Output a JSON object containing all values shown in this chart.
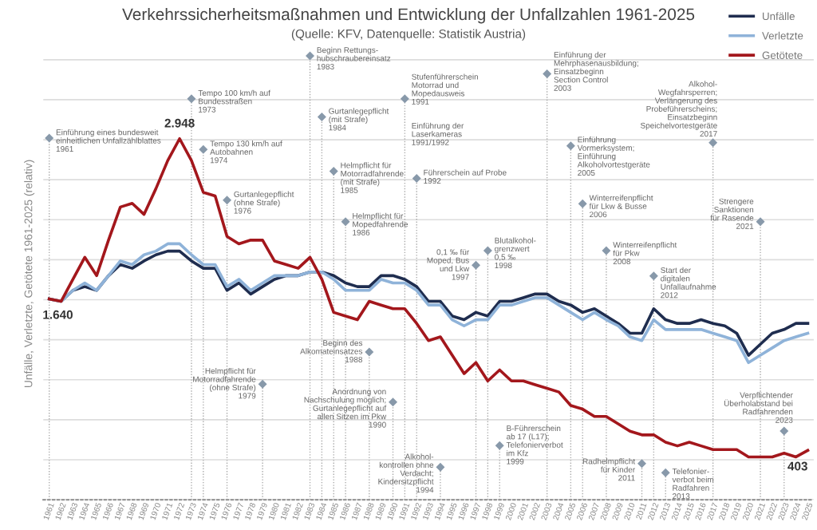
{
  "chart_data": {
    "type": "line",
    "title": "Verkehrssicherheitsmaßnahmen und Entwicklung der Unfallzahlen 1961-2025",
    "subtitle": "(Quelle: KFV, Datenquelle: Statistik Austria)",
    "ylabel": "Unfälle, Verletzte, Getötete 1961-2025 (relativ)",
    "grid": "y",
    "legend": "top right",
    "tick_labels": "x",
    "marker": "none",
    "line_style": "solid",
    "categories": [
      "1961",
      "1962",
      "1963",
      "1964",
      "1965",
      "1966",
      "1967",
      "1968",
      "1969",
      "1970",
      "1971",
      "1972",
      "1973",
      "1974",
      "1975",
      "1976",
      "1977",
      "1978",
      "1979",
      "1980",
      "1981",
      "1982",
      "1983",
      "1984",
      "1985",
      "1986",
      "1987",
      "1988",
      "1989",
      "1990",
      "1991",
      "1992",
      "1993",
      "1994",
      "1995",
      "1996",
      "1997",
      "1998",
      "1999",
      "2000",
      "2001",
      "2002",
      "2003",
      "2004",
      "2005",
      "2006",
      "2007",
      "2008",
      "2009",
      "2010",
      "2011",
      "2012",
      "2013",
      "2014",
      "2015",
      "2016",
      "2017",
      "2018",
      "2019",
      "2020",
      "2021",
      "2022",
      "2023",
      "2024",
      "2025"
    ],
    "series": [
      {
        "name": "Unfälle",
        "color": "#1f2d4f",
        "values": [
          1640,
          1620,
          1710,
          1740,
          1710,
          1830,
          1920,
          1890,
          1950,
          2000,
          2030,
          2030,
          1950,
          1890,
          1890,
          1710,
          1770,
          1680,
          1740,
          1800,
          1830,
          1830,
          1860,
          1860,
          1830,
          1770,
          1740,
          1740,
          1830,
          1830,
          1800,
          1740,
          1620,
          1620,
          1500,
          1470,
          1530,
          1500,
          1620,
          1620,
          1650,
          1680,
          1680,
          1620,
          1590,
          1530,
          1560,
          1500,
          1440,
          1360,
          1360,
          1560,
          1470,
          1440,
          1440,
          1470,
          1440,
          1420,
          1360,
          1180,
          1270,
          1360,
          1390,
          1440,
          1440
        ]
      },
      {
        "name": "Verletzte",
        "color": "#8fb3d9",
        "values": [
          1640,
          1620,
          1710,
          1770,
          1710,
          1830,
          1950,
          1920,
          2000,
          2030,
          2090,
          2090,
          2000,
          1920,
          1920,
          1740,
          1800,
          1710,
          1770,
          1830,
          1830,
          1830,
          1860,
          1860,
          1800,
          1710,
          1710,
          1710,
          1800,
          1770,
          1770,
          1710,
          1590,
          1590,
          1470,
          1420,
          1470,
          1470,
          1590,
          1590,
          1620,
          1650,
          1650,
          1590,
          1530,
          1470,
          1530,
          1470,
          1420,
          1330,
          1300,
          1470,
          1390,
          1390,
          1390,
          1390,
          1360,
          1330,
          1300,
          1120,
          1180,
          1240,
          1300,
          1330,
          1360
        ]
      },
      {
        "name": "Getötete",
        "color": "#a3171c",
        "values": [
          1640,
          1620,
          1800,
          1980,
          1830,
          2120,
          2390,
          2420,
          2330,
          2540,
          2770,
          2948,
          2770,
          2510,
          2480,
          2150,
          2090,
          2120,
          2120,
          1950,
          1920,
          1890,
          1980,
          1800,
          1530,
          1500,
          1470,
          1620,
          1590,
          1560,
          1560,
          1440,
          1300,
          1330,
          1180,
          1030,
          1120,
          970,
          1060,
          970,
          970,
          940,
          910,
          880,
          770,
          740,
          680,
          680,
          620,
          560,
          530,
          530,
          470,
          440,
          470,
          440,
          410,
          410,
          410,
          350,
          350,
          350,
          380,
          350,
          403
        ],
        "value_labels": [
          "1.640",
          null,
          null,
          null,
          null,
          null,
          null,
          null,
          null,
          null,
          null,
          "2.948",
          null,
          null,
          null,
          null,
          null,
          null,
          null,
          null,
          null,
          null,
          null,
          null,
          null,
          null,
          null,
          null,
          null,
          null,
          null,
          null,
          null,
          null,
          null,
          null,
          null,
          null,
          null,
          null,
          null,
          null,
          null,
          null,
          null,
          null,
          null,
          null,
          null,
          null,
          null,
          null,
          null,
          null,
          null,
          null,
          null,
          null,
          null,
          null,
          null,
          null,
          null,
          null,
          "403"
        ]
      }
    ],
    "annotations": [
      "Einführung der\nLaserkameras\n1991/1992"
    ],
    "ref_lines": [
      {
        "axis": "x",
        "value": "1961",
        "label": "Einführung eines bundesweit\neinheitlichen Unfallzählblattes\n1961"
      },
      {
        "axis": "x",
        "value": "1973",
        "label": "Tempo 100 km/h auf\nBundesstraßen\n1973"
      },
      {
        "axis": "x",
        "value": "1974",
        "label": "Tempo 130 km/h auf\nAutobahnen\n1974"
      },
      {
        "axis": "x",
        "value": "1976",
        "label": "Gurtanlegepflicht\n(ohne Strafe)\n1976"
      },
      {
        "axis": "x",
        "value": "1983",
        "label": "Beginn Rettungs-\nhubschraubereinsatz\n1983"
      },
      {
        "axis": "x",
        "value": "1984",
        "label": "Gurtanlegepflicht\n(mit Strafe)\n1984"
      },
      {
        "axis": "x",
        "value": "1985",
        "label": "Helmpflicht für\nMotorradfahrende\n(mit Strafe)\n1985"
      },
      {
        "axis": "x",
        "value": "1986",
        "label": "Helmpflicht für\nMopedfahrende\n1986"
      },
      {
        "axis": "x",
        "value": "1991",
        "label": "Stufenführerschein\nMotorrad und\nMopedausweis\n1991"
      },
      {
        "axis": "x",
        "value": "1992",
        "label": "Führerschein auf Probe\n1992"
      },
      {
        "axis": "x",
        "value": "1997",
        "label": "0,1 ‰ für\nMoped, Bus\nund Lkw\n1997"
      },
      {
        "axis": "x",
        "value": "1998",
        "label": "Blutalkohol-\ngrenzwert\n0,5 ‰\n1998"
      },
      {
        "axis": "x",
        "value": "2003",
        "label": "Einführung der\nMehrphasenausbildung;\nEinsatzbeginn\nSection Control\n2003"
      },
      {
        "axis": "x",
        "value": "2005",
        "label": "Einführung\nVormerksystem;\nEinführung\nAlkoholvortestgeräte\n2005"
      },
      {
        "axis": "x",
        "value": "2006",
        "label": "Winterreifenpflicht\nfür Lkw & Busse\n2006"
      },
      {
        "axis": "x",
        "value": "2008",
        "label": "Winterreifenpflicht\nfür Pkw\n2008"
      },
      {
        "axis": "x",
        "value": "2012",
        "label": "Start der\ndigitalen\nUnfallaufnahme\n2012"
      },
      {
        "axis": "x",
        "value": "2017",
        "label": "Alkohol-\nWegfahrsperren;\nVerlängerung des\nProbeführerscheins;\nEinsatzbeginn\nSpeichelvortestgeräte\n2017"
      },
      {
        "axis": "x",
        "value": "2021",
        "label": "Strengere\nSanktionen\nfür Rasende\n2021"
      },
      {
        "axis": "x",
        "value": "2023",
        "label": "Verpflichtender\nÜberholabstand bei\nRadfahrenden\n2023"
      },
      {
        "axis": "x",
        "value": "2013",
        "label": "Telefonier-\nverbot beim\nRadfahren\n2013"
      },
      {
        "axis": "x",
        "value": "2011",
        "label": "Radhelmpflicht\nfür Kinder\n2011"
      },
      {
        "axis": "x",
        "value": "1999",
        "label": "B-Führerschein\nab 17 (L17);\nTelefonierverbot\nim Kfz\n1999"
      },
      {
        "axis": "x",
        "value": "1994",
        "label": "Alkohol-\nkontrollen ohne\nVerdacht;\nKindersitzpflicht\n1994"
      },
      {
        "axis": "x",
        "value": "1990",
        "label": "Anordnung von\nNachschulung möglich;\nGurtanlegepflicht auf\nallen Sitzen im Pkw\n1990"
      },
      {
        "axis": "x",
        "value": "1988",
        "label": "Beginn des\nAlkomateinsatzes\n1988"
      },
      {
        "axis": "x",
        "value": "1979",
        "label": "Helmpflicht für\nMotorradfahrende\n(ohne Strafe)\n1979"
      }
    ]
  }
}
